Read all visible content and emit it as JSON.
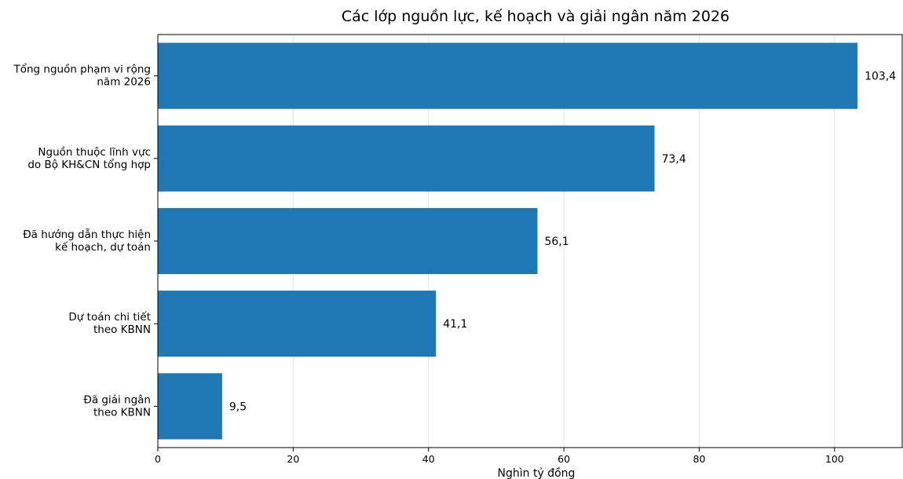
{
  "chart_data": {
    "type": "bar",
    "orientation": "horizontal",
    "title": "Các lớp nguồn lực, kế hoạch và giải ngân năm 2026",
    "xlabel": "Nghìn tỷ đồng",
    "ylabel": "",
    "xlim": [
      0,
      110
    ],
    "x_ticks": [
      0,
      20,
      40,
      60,
      80,
      100
    ],
    "x_tick_labels": [
      "0",
      "20",
      "40",
      "60",
      "80",
      "100"
    ],
    "grid": "vertical",
    "categories": [
      [
        "Tổng nguồn phạm vi rộng",
        "năm 2026"
      ],
      [
        "Nguồn thuộc lĩnh vực",
        "do Bộ KH&CN tổng hợp"
      ],
      [
        "Đã hướng dẫn thực hiện",
        "kế hoạch, dự toán"
      ],
      [
        "Dự toán chi tiết",
        "theo KBNN"
      ],
      [
        "Đã giải ngân",
        "theo KBNN"
      ]
    ],
    "values": [
      103.4,
      73.4,
      56.1,
      41.1,
      9.5
    ],
    "value_labels": [
      "103,4",
      "73,4",
      "56,1",
      "41,1",
      "9,5"
    ],
    "bar_color": "#1f77b4"
  }
}
